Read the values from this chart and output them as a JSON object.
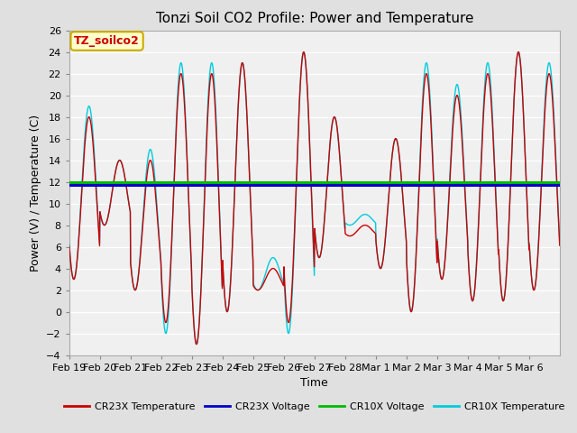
{
  "title": "Tonzi Soil CO2 Profile: Power and Temperature",
  "xlabel": "Time",
  "ylabel": "Power (V) / Temperature (C)",
  "ylim": [
    -4,
    26
  ],
  "yticks": [
    -4,
    -2,
    0,
    2,
    4,
    6,
    8,
    10,
    12,
    14,
    16,
    18,
    20,
    22,
    24,
    26
  ],
  "xtick_labels": [
    "Feb 19",
    "Feb 20",
    "Feb 21",
    "Feb 22",
    "Feb 23",
    "Feb 24",
    "Feb 25",
    "Feb 26",
    "Feb 27",
    "Feb 28",
    "Mar 1",
    "Mar 2",
    "Mar 3",
    "Mar 4",
    "Mar 5",
    "Mar 6"
  ],
  "cr23x_voltage": 11.7,
  "cr10x_voltage": 11.95,
  "background_color": "#e0e0e0",
  "plot_bg_color": "#f0f0f0",
  "cr23x_temp_color": "#cc0000",
  "cr23x_voltage_color": "#0000cc",
  "cr10x_voltage_color": "#00bb00",
  "cr10x_temp_color": "#00ccdd",
  "legend_label": "TZ_soilco2",
  "legend_bg": "#ffffcc",
  "legend_border": "#ccaa00",
  "linewidth": 1.0,
  "voltage_linewidth": 2.2,
  "peaks": [
    18,
    14,
    14,
    22,
    22,
    23,
    4,
    24,
    18,
    8,
    16,
    22,
    20,
    22,
    24,
    22
  ],
  "troughs": [
    3,
    8,
    2,
    -1,
    -3,
    0,
    2,
    -1,
    5,
    7,
    4,
    0,
    3,
    1,
    1,
    2
  ],
  "peaks2": [
    19,
    14,
    15,
    23,
    23,
    23,
    5,
    24,
    18,
    9,
    16,
    23,
    21,
    23,
    24,
    23
  ],
  "troughs2": [
    3,
    8,
    2,
    -2,
    -3,
    0,
    2,
    -2,
    5,
    8,
    4,
    0,
    3,
    1,
    1,
    2
  ]
}
